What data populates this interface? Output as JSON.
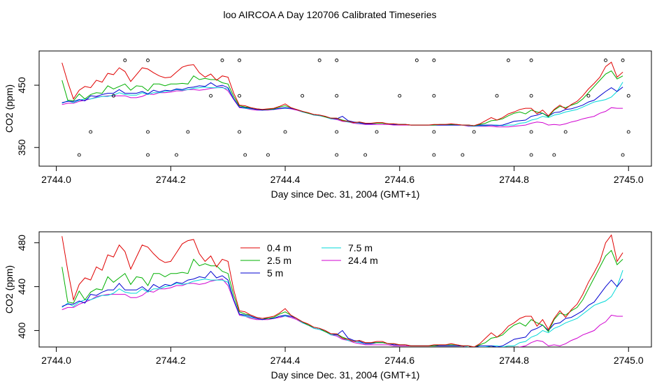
{
  "chart_data": {
    "title": "loo AIRCOA A  Day 120706  Calibrated Timeseries",
    "panels": [
      {
        "type": "line",
        "xlabel": "Day since Dec. 31, 2004 (GMT+1)",
        "ylabel": "CO2 (ppm)",
        "xlim": [
          2743.97,
          2745.04
        ],
        "ylim": [
          320,
          505
        ],
        "yticks": [
          350,
          450
        ],
        "xticks": [
          "2744.0",
          "2744.2",
          "2744.4",
          "2744.6",
          "2744.8",
          "2745.0"
        ],
        "series_points": [
          {
            "x": 2744.0,
            "y": 470
          },
          {
            "x": 2744.2,
            "y": 460
          },
          {
            "x": 2744.4,
            "y": 410
          },
          {
            "x": 2744.6,
            "y": 392
          },
          {
            "x": 2744.8,
            "y": 408
          },
          {
            "x": 2745.0,
            "y": 466
          }
        ],
        "extra_markers": [
          {
            "x": 2744.12,
            "y": 490
          },
          {
            "x": 2744.16,
            "y": 490
          },
          {
            "x": 2744.29,
            "y": 490
          },
          {
            "x": 2744.32,
            "y": 490
          },
          {
            "x": 2744.46,
            "y": 490
          },
          {
            "x": 2744.49,
            "y": 490
          },
          {
            "x": 2744.63,
            "y": 490
          },
          {
            "x": 2744.66,
            "y": 490
          },
          {
            "x": 2744.79,
            "y": 490
          },
          {
            "x": 2744.83,
            "y": 490
          },
          {
            "x": 2744.96,
            "y": 490
          },
          {
            "x": 2744.99,
            "y": 490
          },
          {
            "x": 2744.1,
            "y": 433
          },
          {
            "x": 2744.27,
            "y": 433
          },
          {
            "x": 2744.32,
            "y": 433
          },
          {
            "x": 2744.43,
            "y": 433
          },
          {
            "x": 2744.49,
            "y": 433
          },
          {
            "x": 2744.6,
            "y": 433
          },
          {
            "x": 2744.66,
            "y": 433
          },
          {
            "x": 2744.77,
            "y": 433
          },
          {
            "x": 2744.83,
            "y": 433
          },
          {
            "x": 2744.93,
            "y": 433
          },
          {
            "x": 2745.0,
            "y": 433
          },
          {
            "x": 2744.06,
            "y": 375
          },
          {
            "x": 2744.16,
            "y": 375
          },
          {
            "x": 2744.23,
            "y": 375
          },
          {
            "x": 2744.32,
            "y": 375
          },
          {
            "x": 2744.4,
            "y": 375
          },
          {
            "x": 2744.49,
            "y": 375
          },
          {
            "x": 2744.56,
            "y": 375
          },
          {
            "x": 2744.66,
            "y": 375
          },
          {
            "x": 2744.73,
            "y": 375
          },
          {
            "x": 2744.83,
            "y": 375
          },
          {
            "x": 2744.89,
            "y": 375
          },
          {
            "x": 2745.0,
            "y": 375
          },
          {
            "x": 2744.04,
            "y": 338
          },
          {
            "x": 2744.16,
            "y": 338
          },
          {
            "x": 2744.21,
            "y": 338
          },
          {
            "x": 2744.33,
            "y": 338
          },
          {
            "x": 2744.37,
            "y": 338
          },
          {
            "x": 2744.49,
            "y": 338
          },
          {
            "x": 2744.54,
            "y": 338
          },
          {
            "x": 2744.66,
            "y": 338
          },
          {
            "x": 2744.71,
            "y": 338
          },
          {
            "x": 2744.83,
            "y": 338
          },
          {
            "x": 2744.87,
            "y": 338
          },
          {
            "x": 2744.99,
            "y": 338
          }
        ]
      },
      {
        "type": "line",
        "xlabel": "Day since Dec. 31, 2004 (GMT+1)",
        "ylabel": "CO2 (ppm)",
        "xlim": [
          2743.97,
          2745.04
        ],
        "ylim": [
          385,
          490
        ],
        "yticks": [
          400,
          440,
          480
        ],
        "xticks": [
          "2744.0",
          "2744.2",
          "2744.4",
          "2744.6",
          "2744.8",
          "2745.0"
        ],
        "legend_position": "top-center"
      }
    ],
    "series_colors": {
      "0.4 m": "#e00000",
      "2.5 m": "#00b000",
      "5 m": "#0000d0",
      "7.5 m": "#00d8d8",
      "24.4 m": "#d000d0"
    },
    "x": [
      2744.01,
      2744.02,
      2744.03,
      2744.04,
      2744.05,
      2744.06,
      2744.07,
      2744.08,
      2744.09,
      2744.1,
      2744.11,
      2744.12,
      2744.13,
      2744.14,
      2744.15,
      2744.16,
      2744.17,
      2744.18,
      2744.19,
      2744.2,
      2744.21,
      2744.22,
      2744.23,
      2744.24,
      2744.25,
      2744.26,
      2744.27,
      2744.28,
      2744.29,
      2744.3,
      2744.31,
      2744.32,
      2744.33,
      2744.34,
      2744.35,
      2744.36,
      2744.37,
      2744.38,
      2744.39,
      2744.4,
      2744.41,
      2744.42,
      2744.43,
      2744.44,
      2744.45,
      2744.46,
      2744.47,
      2744.48,
      2744.49,
      2744.5,
      2744.51,
      2744.52,
      2744.53,
      2744.54,
      2744.55,
      2744.56,
      2744.57,
      2744.58,
      2744.59,
      2744.6,
      2744.61,
      2744.62,
      2744.63,
      2744.64,
      2744.65,
      2744.66,
      2744.67,
      2744.68,
      2744.69,
      2744.7,
      2744.71,
      2744.72,
      2744.73,
      2744.74,
      2744.75,
      2744.76,
      2744.77,
      2744.78,
      2744.79,
      2744.8,
      2744.81,
      2744.82,
      2744.83,
      2744.84,
      2744.85,
      2744.86,
      2744.87,
      2744.88,
      2744.89,
      2744.9,
      2744.91,
      2744.92,
      2744.93,
      2744.94,
      2744.95,
      2744.96,
      2744.97,
      2744.98,
      2744.99
    ],
    "series": [
      {
        "name": "0.4 m",
        "values": [
          486,
          455,
          428,
          442,
          448,
          446,
          458,
          455,
          469,
          467,
          478,
          472,
          456,
          467,
          478,
          476,
          470,
          465,
          462,
          463,
          471,
          479,
          482,
          483,
          470,
          463,
          468,
          458,
          465,
          463,
          437,
          418,
          417,
          414,
          412,
          411,
          412,
          413,
          416,
          420,
          414,
          411,
          408,
          406,
          403,
          402,
          400,
          397,
          397,
          393,
          392,
          390,
          391,
          389,
          389,
          390,
          390,
          388,
          388,
          387,
          387,
          386,
          386,
          386,
          386,
          387,
          387,
          387,
          388,
          387,
          386,
          386,
          385,
          388,
          393,
          398,
          394,
          398,
          404,
          407,
          411,
          413,
          413,
          404,
          410,
          401,
          411,
          418,
          412,
          419,
          424,
          433,
          444,
          453,
          463,
          480,
          487,
          463,
          471
        ]
      },
      {
        "name": "2.5 m",
        "values": [
          458,
          426,
          425,
          436,
          428,
          435,
          438,
          437,
          449,
          444,
          448,
          452,
          442,
          449,
          448,
          441,
          452,
          452,
          449,
          452,
          452,
          453,
          452,
          465,
          459,
          461,
          459,
          459,
          454,
          452,
          432,
          417,
          415,
          414,
          412,
          411,
          411,
          412,
          415,
          417,
          414,
          411,
          408,
          405,
          403,
          402,
          399,
          397,
          397,
          394,
          392,
          390,
          391,
          389,
          389,
          389,
          389,
          388,
          388,
          387,
          387,
          386,
          386,
          386,
          386,
          386,
          387,
          387,
          387,
          387,
          386,
          386,
          385,
          387,
          389,
          393,
          394,
          396,
          401,
          405,
          407,
          404,
          410,
          407,
          405,
          399,
          410,
          416,
          414,
          418,
          421,
          428,
          438,
          448,
          458,
          468,
          473,
          460,
          465
        ]
      },
      {
        "name": "5 m",
        "values": [
          422,
          424,
          424,
          427,
          425,
          433,
          432,
          435,
          437,
          437,
          443,
          437,
          437,
          437,
          440,
          436,
          442,
          439,
          442,
          441,
          444,
          443,
          446,
          447,
          449,
          448,
          454,
          448,
          450,
          446,
          428,
          415,
          414,
          413,
          411,
          410,
          411,
          411,
          413,
          414,
          413,
          411,
          408,
          405,
          403,
          402,
          400,
          397,
          396,
          400,
          393,
          391,
          390,
          388,
          388,
          389,
          389,
          388,
          387,
          387,
          387,
          386,
          386,
          386,
          386,
          386,
          386,
          386,
          386,
          386,
          386,
          386,
          385,
          386,
          386,
          386,
          385,
          386,
          389,
          392,
          393,
          394,
          400,
          402,
          405,
          400,
          406,
          407,
          411,
          412,
          415,
          418,
          423,
          426,
          433,
          440,
          446,
          440,
          447
        ]
      },
      {
        "name": "7.5 m",
        "values": [
          421,
          425,
          422,
          426,
          428,
          428,
          430,
          432,
          432,
          434,
          438,
          435,
          434,
          434,
          438,
          435,
          438,
          438,
          440,
          441,
          443,
          442,
          443,
          445,
          446,
          447,
          446,
          446,
          446,
          444,
          428,
          415,
          413,
          412,
          411,
          410,
          411,
          411,
          413,
          413,
          413,
          411,
          407,
          405,
          402,
          401,
          399,
          396,
          396,
          393,
          391,
          390,
          389,
          388,
          388,
          389,
          389,
          388,
          387,
          387,
          387,
          386,
          386,
          386,
          386,
          386,
          386,
          386,
          386,
          386,
          386,
          385,
          384,
          385,
          385,
          386,
          386,
          385,
          386,
          386,
          389,
          390,
          394,
          396,
          400,
          398,
          402,
          404,
          407,
          409,
          411,
          415,
          419,
          423,
          425,
          427,
          431,
          440,
          455
        ]
      },
      {
        "name": "24.4 m",
        "values": [
          419,
          421,
          421,
          424,
          426,
          428,
          431,
          432,
          433,
          433,
          433,
          433,
          430,
          430,
          432,
          436,
          435,
          438,
          438,
          439,
          441,
          441,
          443,
          443,
          442,
          443,
          445,
          446,
          447,
          441,
          427,
          414,
          413,
          411,
          410,
          410,
          410,
          411,
          412,
          413,
          412,
          410,
          407,
          405,
          402,
          401,
          399,
          396,
          395,
          392,
          391,
          389,
          388,
          387,
          387,
          387,
          387,
          387,
          386,
          386,
          386,
          386,
          386,
          386,
          386,
          386,
          386,
          386,
          386,
          386,
          386,
          384,
          384,
          384,
          384,
          384,
          383,
          383,
          383,
          384,
          385,
          386,
          389,
          391,
          390,
          386,
          387,
          386,
          388,
          391,
          393,
          396,
          398,
          400,
          405,
          408,
          414,
          413,
          413
        ]
      }
    ]
  }
}
